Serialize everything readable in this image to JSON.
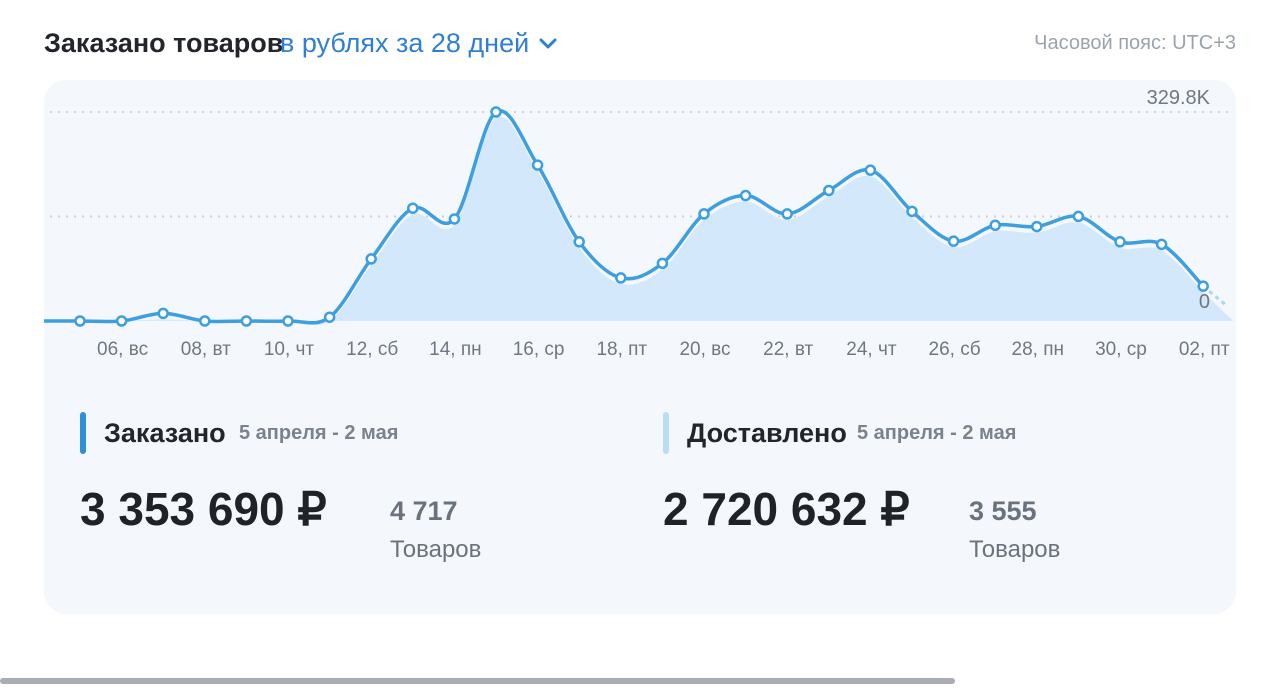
{
  "header": {
    "title": "Заказано товаров",
    "period_label": "в рублях за 28 дней",
    "timezone": "Часовой пояс: UTC+3"
  },
  "chart_data": {
    "type": "line",
    "x_ticks": [
      "06, вс",
      "08, вт",
      "10, чт",
      "12, сб",
      "14, пн",
      "16, ср",
      "18, пт",
      "20, вс",
      "22, вт",
      "24, чт",
      "26, сб",
      "28, пн",
      "30, ср",
      "02, пт"
    ],
    "y_max_label": "329.8K",
    "y_min_label": "0",
    "ylim": [
      0,
      329800
    ],
    "grid": "dotted horizontal",
    "series": [
      {
        "color": "#3d9ee0",
        "values": [
          0,
          0,
          12000,
          0,
          0,
          0,
          6000,
          98000,
          178000,
          161000,
          329800,
          246000,
          125000,
          68000,
          91000,
          169000,
          198000,
          169000,
          206000,
          238000,
          173000,
          126000,
          151000,
          149000,
          165000,
          125000,
          121000,
          55000
        ]
      }
    ],
    "area_fill": "#d3e8fb",
    "colors": {
      "line": "#3d9ee0",
      "fill": "#d3e8fb",
      "grid": "#c9d3dd"
    }
  },
  "stats": {
    "ordered": {
      "label": "Заказано",
      "range": "5 апреля - 2 мая",
      "amount": "3 353 690 ₽",
      "count": "4 717",
      "unit": "Товаров",
      "accent": "#2f8fd8"
    },
    "delivered": {
      "label": "Доставлено",
      "range": "5 апреля - 2 мая",
      "amount": "2 720 632 ₽",
      "count": "3 555",
      "unit": "Товаров",
      "accent": "#b9ddf2"
    }
  },
  "icons": {
    "period_dropdown": "chevron-down-icon"
  }
}
